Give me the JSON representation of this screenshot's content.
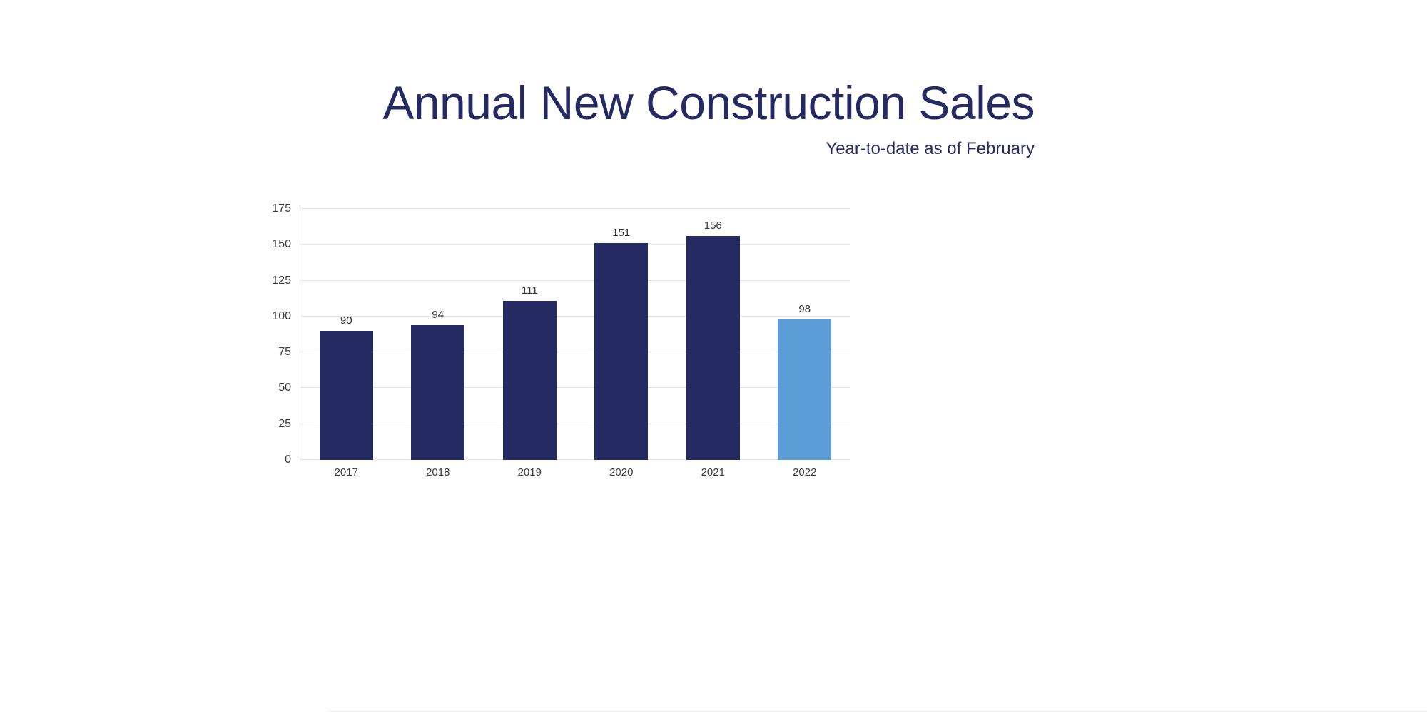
{
  "page": {
    "background": "#ffffff"
  },
  "chart_data": {
    "type": "bar",
    "title": "Annual New Construction Sales",
    "subtitle": "Year-to-date as of February",
    "categories": [
      "2017",
      "2018",
      "2019",
      "2020",
      "2021",
      "2022"
    ],
    "values": [
      90,
      94,
      111,
      151,
      156,
      98
    ],
    "bar_colors": [
      "#252a63",
      "#252a63",
      "#252a63",
      "#252a63",
      "#252a63",
      "#5b9dd6"
    ],
    "xlabel": "",
    "ylabel": "",
    "ylim": [
      0,
      175
    ],
    "yticks": [
      0,
      25,
      50,
      75,
      100,
      125,
      150,
      175
    ],
    "grid": true,
    "legend_position": "none"
  },
  "colors": {
    "title_text": "#252a63",
    "bar_default": "#252a63",
    "bar_highlight": "#5b9dd6",
    "axis_text": "#3b3b3b",
    "gridline": "#e3e3e3"
  }
}
